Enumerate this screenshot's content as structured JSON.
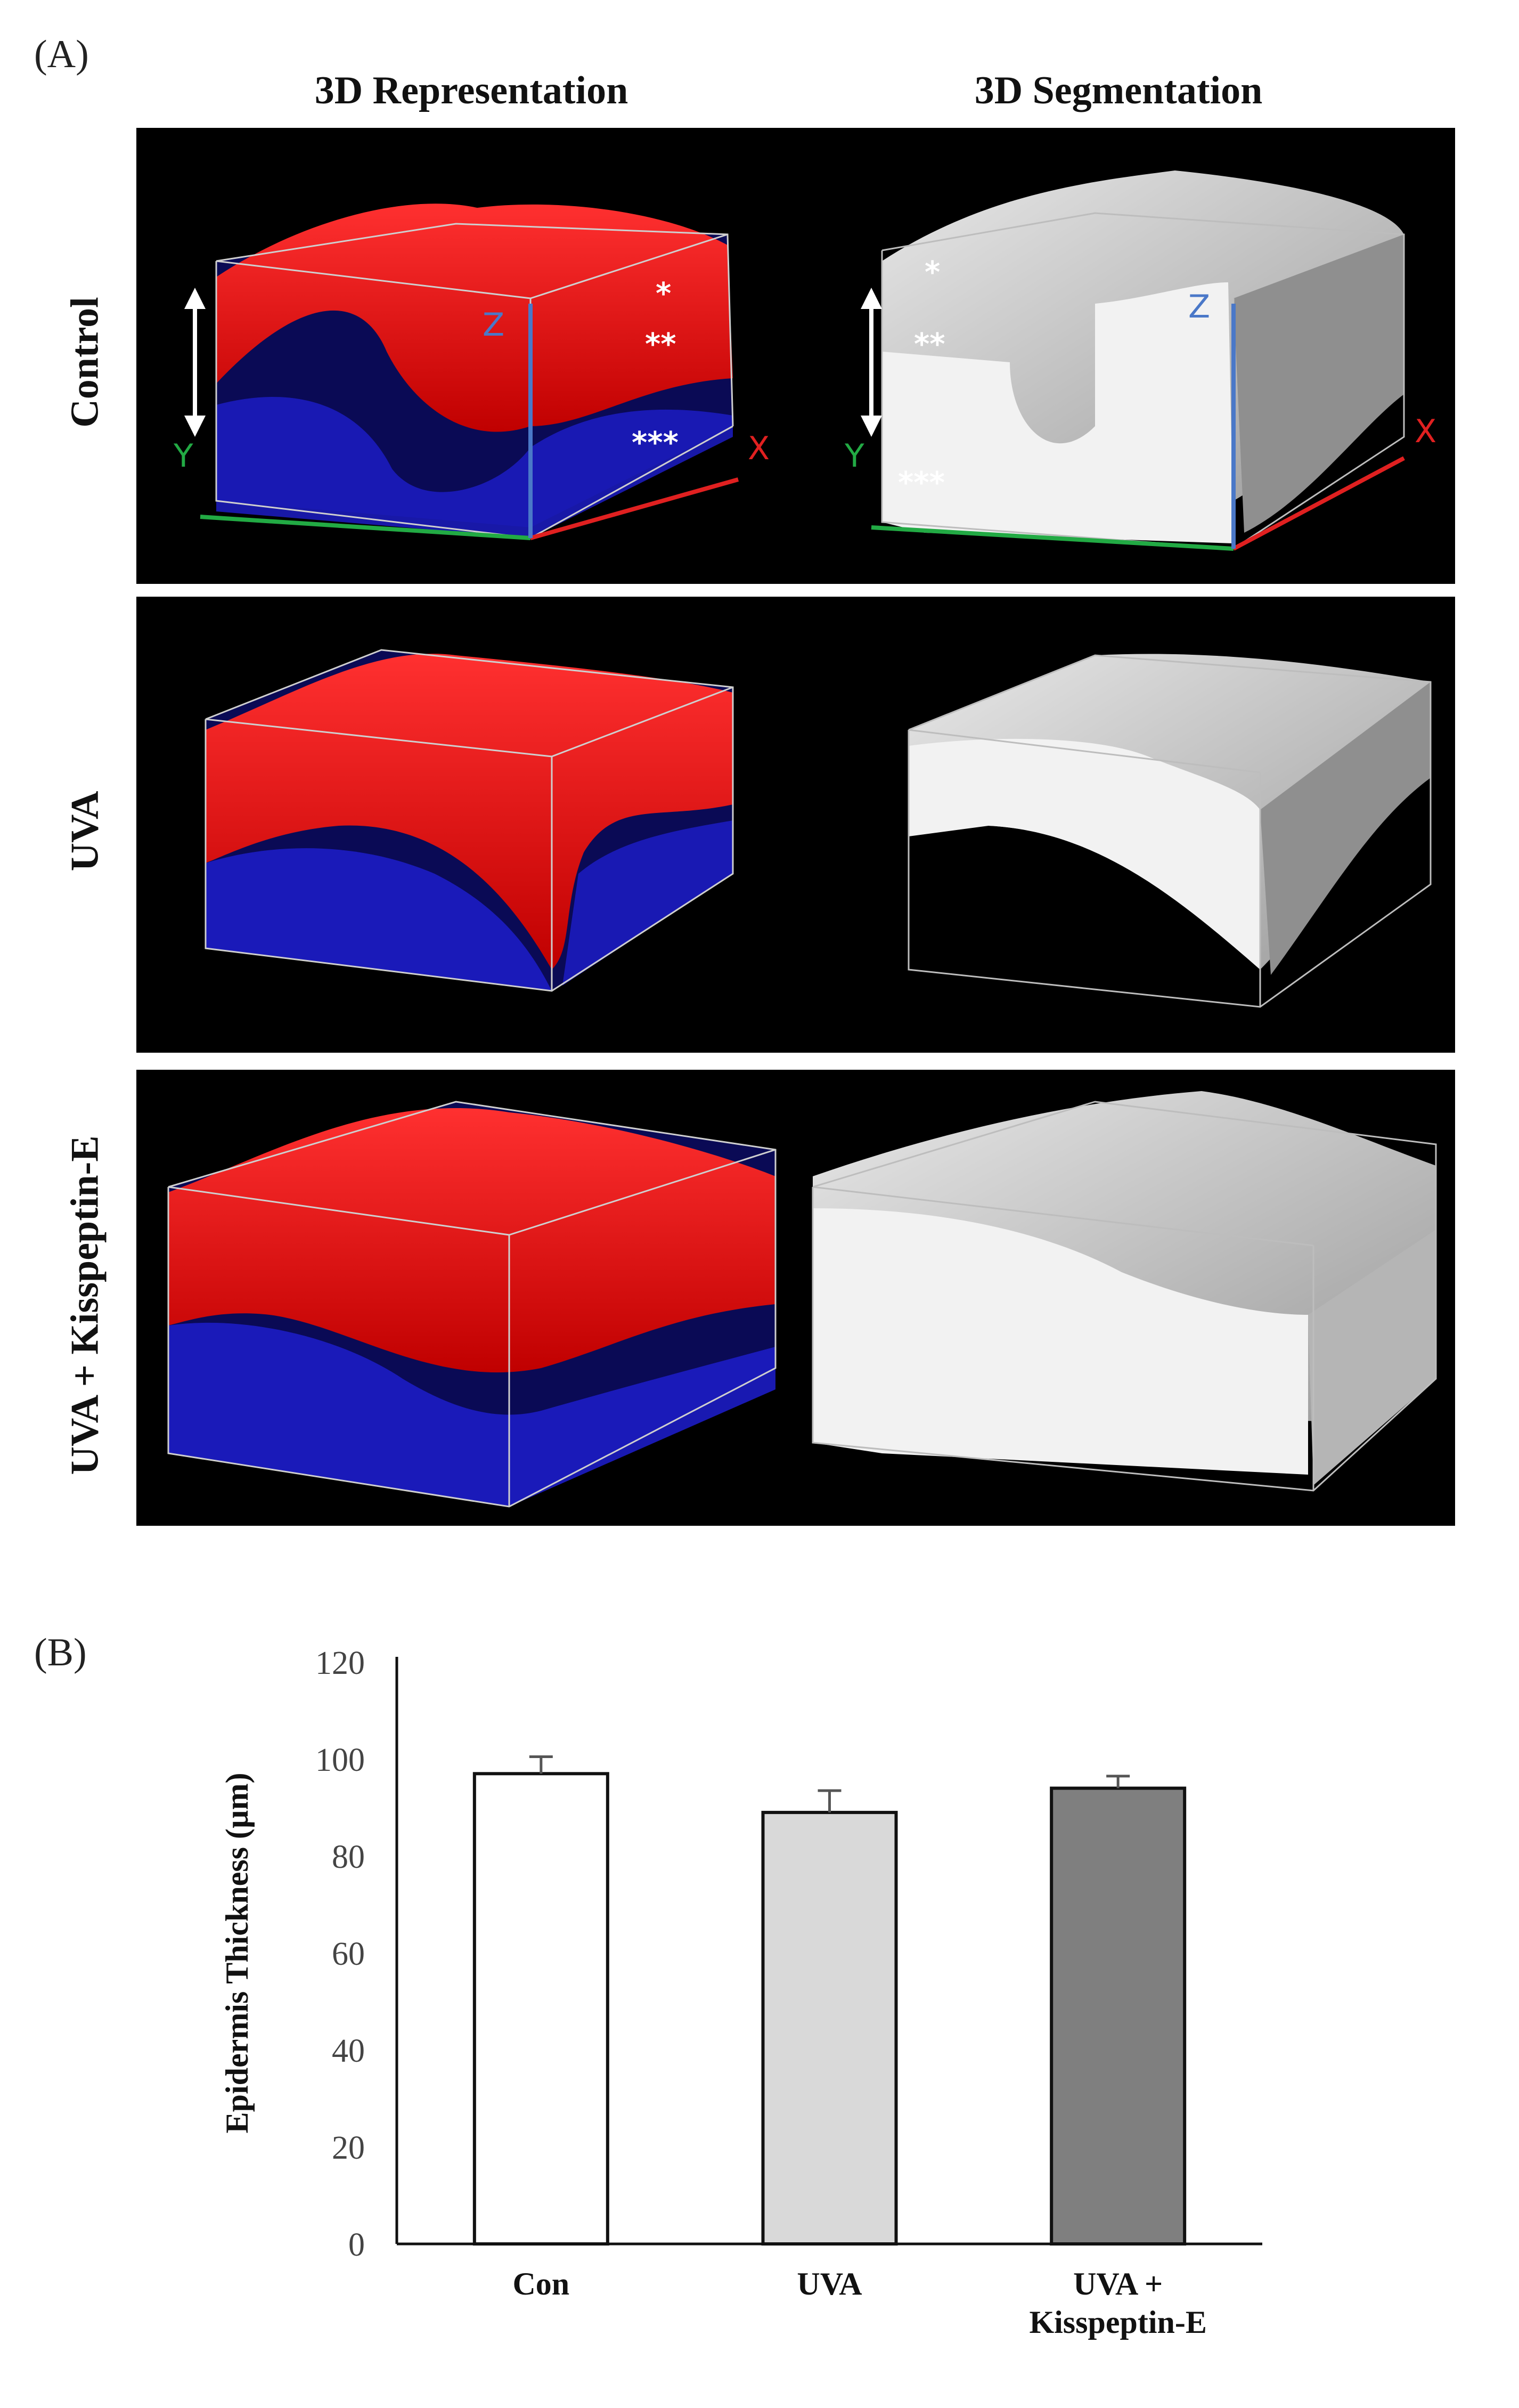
{
  "panel_a": {
    "letter": "(A)",
    "columns": [
      "3D Representation",
      "3D Segmentation"
    ],
    "rows": [
      "Control",
      "UVA",
      "UVA + Kisspeptin-E"
    ],
    "markers": [
      "*",
      "**",
      "***"
    ],
    "axes": [
      "X",
      "Y",
      "Z"
    ],
    "colors": {
      "epidermis_red": "#ff1a1a",
      "dermis_blue": "#1a1acc",
      "segmentation_gray": "#d9d9d9",
      "x_axis": "#e02020",
      "y_axis": "#22aa44",
      "z_axis": "#4a78c8"
    }
  },
  "panel_b": {
    "letter": "(B)"
  },
  "chart_data": {
    "type": "bar",
    "categories": [
      "Con",
      "UVA",
      "UVA + Kisspeptin-E"
    ],
    "category_lines": [
      [
        "Con"
      ],
      [
        "UVA"
      ],
      [
        "UVA +",
        "Kisspeptin-E"
      ]
    ],
    "values": [
      97,
      89,
      94
    ],
    "errors": [
      3.5,
      4.5,
      2.5
    ],
    "bar_colors": [
      "#ffffff",
      "#d9d9d9",
      "#7f7f7f"
    ],
    "title": "",
    "xlabel": "",
    "ylabel": "Epidermis Thickness (µm)",
    "ylim": [
      0,
      120
    ],
    "yticks": [
      0,
      20,
      40,
      60,
      80,
      100,
      120
    ],
    "grid": false
  }
}
